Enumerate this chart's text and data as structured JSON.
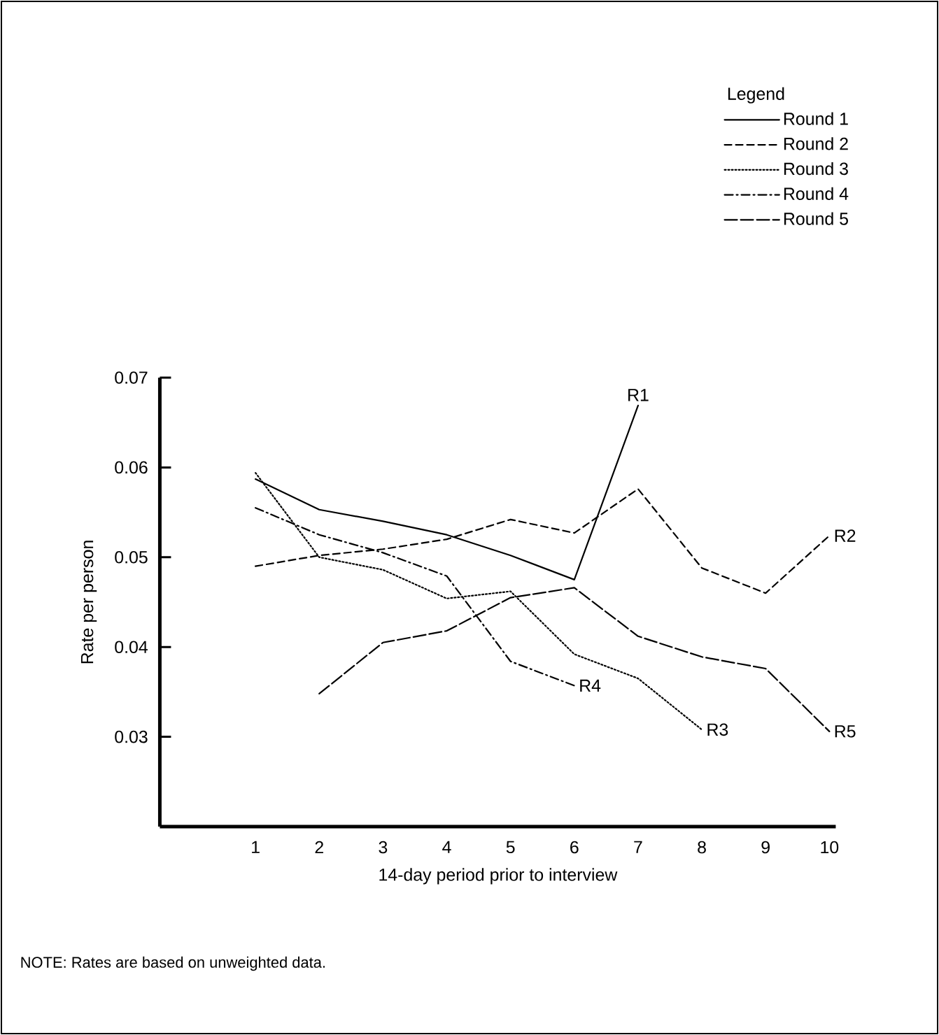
{
  "chart_data": {
    "type": "line",
    "xlabel": "14-day period prior to interview",
    "ylabel": "Rate per person",
    "legend_title": "Legend",
    "xlim": [
      -0.5,
      10.1
    ],
    "ylim": [
      0.02,
      0.07
    ],
    "xticks": [
      1,
      2,
      3,
      4,
      5,
      6,
      7,
      8,
      9,
      10
    ],
    "yticks": [
      0.03,
      0.04,
      0.05,
      0.06,
      0.07
    ],
    "legend": "top right",
    "grid": false,
    "marker": "none",
    "series": [
      {
        "name": "Round 1",
        "color": "#000000",
        "line_style": "solid",
        "x": [
          1,
          2,
          3,
          4,
          5,
          6,
          7
        ],
        "values": [
          0.0587,
          0.0553,
          0.054,
          0.0525,
          0.0502,
          0.0475,
          0.0669
        ]
      },
      {
        "name": "Round 2",
        "color": "#000000",
        "line_style": "dashed",
        "x": [
          1,
          2,
          3,
          4,
          5,
          6,
          7,
          8,
          9,
          10
        ],
        "values": [
          0.049,
          0.0502,
          0.0509,
          0.052,
          0.0542,
          0.0527,
          0.0576,
          0.0488,
          0.046,
          0.0524
        ]
      },
      {
        "name": "Round 3",
        "color": "#000000",
        "line_style": "dotted",
        "x": [
          1,
          2,
          3,
          4,
          5,
          6,
          7,
          8
        ],
        "values": [
          0.0594,
          0.05,
          0.0486,
          0.0454,
          0.0462,
          0.0392,
          0.0365,
          0.0308
        ]
      },
      {
        "name": "Round 4",
        "color": "#000000",
        "line_style": "dashdotted",
        "x": [
          1,
          2,
          3,
          4,
          5,
          6
        ],
        "values": [
          0.0555,
          0.0525,
          0.0505,
          0.0479,
          0.0384,
          0.0357
        ]
      },
      {
        "name": "Round 5",
        "color": "#000000",
        "line_style": "longdashed",
        "x": [
          2,
          3,
          4,
          5,
          6,
          7,
          8,
          9,
          10
        ],
        "values": [
          0.0348,
          0.0405,
          0.0418,
          0.0455,
          0.0466,
          0.0412,
          0.0389,
          0.0376,
          0.0306
        ]
      }
    ],
    "annotations": [
      {
        "text": "R1",
        "x": 7,
        "y": 0.0669
      },
      {
        "text": "R2",
        "x": 10,
        "y": 0.0524
      },
      {
        "text": "R3",
        "x": 8,
        "y": 0.0308
      },
      {
        "text": "R4",
        "x": 6,
        "y": 0.0357
      },
      {
        "text": "R5",
        "x": 10,
        "y": 0.0306
      },
      "NOTE: Rates are based on unweighted data."
    ]
  }
}
